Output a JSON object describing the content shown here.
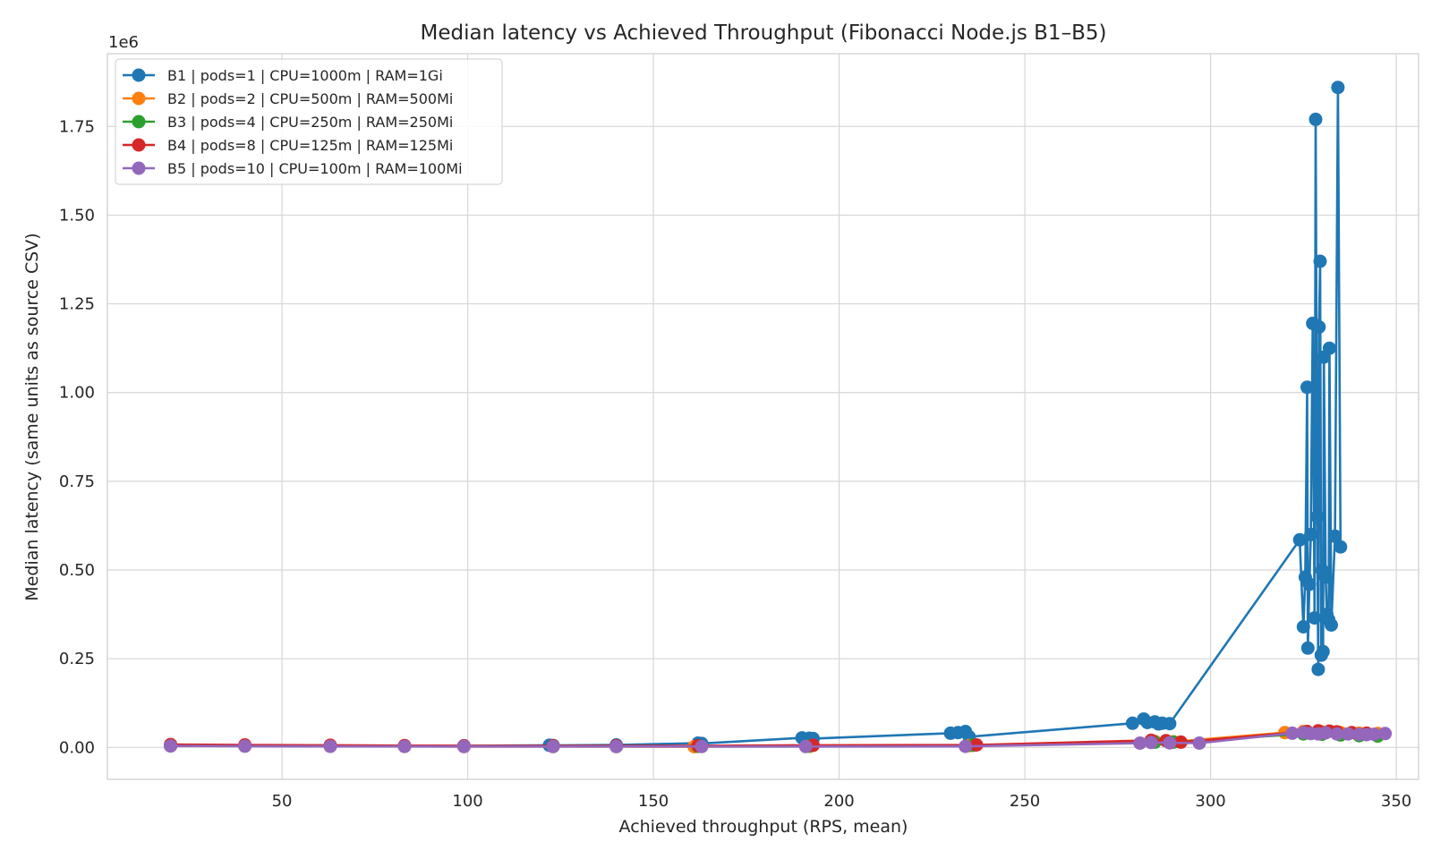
{
  "chart_data": {
    "type": "line",
    "title": "Median latency vs Achieved Throughput (Fibonacci Node.js B1–B5)",
    "xlabel": "Achieved throughput (RPS, mean)",
    "ylabel": "Median latency (same units as source CSV)",
    "y_offset_label": "1e6",
    "xlim": [
      3,
      356
    ],
    "ylim": [
      -90000,
      1955000
    ],
    "x_ticks": [
      {
        "value": 50,
        "label": "50"
      },
      {
        "value": 100,
        "label": "100"
      },
      {
        "value": 150,
        "label": "150"
      },
      {
        "value": 200,
        "label": "200"
      },
      {
        "value": 250,
        "label": "250"
      },
      {
        "value": 300,
        "label": "300"
      },
      {
        "value": 350,
        "label": "350"
      }
    ],
    "y_ticks": [
      {
        "value": 0,
        "label": "0.00"
      },
      {
        "value": 250000,
        "label": "0.25"
      },
      {
        "value": 500000,
        "label": "0.50"
      },
      {
        "value": 750000,
        "label": "0.75"
      },
      {
        "value": 1000000,
        "label": "1.00"
      },
      {
        "value": 1250000,
        "label": "1.25"
      },
      {
        "value": 1500000,
        "label": "1.50"
      },
      {
        "value": 1750000,
        "label": "1.75"
      }
    ],
    "grid": true,
    "legend_position": "top-left",
    "series": [
      {
        "name": "B1 | pods=1 | CPU=1000m | RAM=1Gi",
        "color": "#1f77b4",
        "points": [
          [
            20,
            4500
          ],
          [
            40,
            4500
          ],
          [
            63,
            4500
          ],
          [
            83,
            4500
          ],
          [
            99,
            4500
          ],
          [
            122,
            6000
          ],
          [
            123,
            5500
          ],
          [
            140,
            7000
          ],
          [
            162,
            12000
          ],
          [
            163,
            11000
          ],
          [
            190,
            27000
          ],
          [
            192,
            26000
          ],
          [
            193,
            25000
          ],
          [
            230,
            40000
          ],
          [
            232,
            42000
          ],
          [
            234,
            45000
          ],
          [
            235,
            30000
          ],
          [
            279,
            68000
          ],
          [
            282,
            80000
          ],
          [
            283,
            70000
          ],
          [
            285,
            72000
          ],
          [
            286,
            66000
          ],
          [
            287,
            68000
          ],
          [
            289,
            67000
          ],
          [
            324,
            585000
          ],
          [
            325,
            340000
          ],
          [
            325.5,
            480000
          ],
          [
            326,
            1015000
          ],
          [
            326.2,
            280000
          ],
          [
            326.6,
            460000
          ],
          [
            327,
            600000
          ],
          [
            327.5,
            1195000
          ],
          [
            328,
            365000
          ],
          [
            328.3,
            1770000
          ],
          [
            328.7,
            650000
          ],
          [
            329,
            220000
          ],
          [
            329.2,
            1185000
          ],
          [
            329.5,
            1370000
          ],
          [
            329.8,
            260000
          ],
          [
            330,
            500000
          ],
          [
            330.3,
            270000
          ],
          [
            330.5,
            1100000
          ],
          [
            331,
            480000
          ],
          [
            331.3,
            375000
          ],
          [
            331.8,
            360000
          ],
          [
            332,
            1125000
          ],
          [
            332.5,
            345000
          ],
          [
            333.5,
            595000
          ],
          [
            334.3,
            1860000
          ],
          [
            335,
            565000
          ]
        ]
      },
      {
        "name": "B2 | pods=2 | CPU=500m | RAM=500Mi",
        "color": "#ff7f0e",
        "points": [
          [
            20,
            4500
          ],
          [
            40,
            4000
          ],
          [
            63,
            3500
          ],
          [
            83,
            3000
          ],
          [
            99,
            2500
          ],
          [
            123,
            2500
          ],
          [
            140,
            2500
          ],
          [
            161,
            2000
          ],
          [
            192,
            3000
          ],
          [
            235,
            5000
          ],
          [
            285,
            17000
          ],
          [
            290,
            16000
          ],
          [
            320,
            42000
          ],
          [
            325,
            45000
          ],
          [
            330,
            44000
          ],
          [
            335,
            42000
          ],
          [
            340,
            40000
          ],
          [
            345,
            39000
          ]
        ]
      },
      {
        "name": "B3 | pods=4 | CPU=250m | RAM=250Mi",
        "color": "#2ca02c",
        "points": [
          [
            20,
            5000
          ],
          [
            40,
            4500
          ],
          [
            63,
            4000
          ],
          [
            83,
            3500
          ],
          [
            99,
            3000
          ],
          [
            123,
            3000
          ],
          [
            140,
            3000
          ],
          [
            162,
            3000
          ],
          [
            192,
            4000
          ],
          [
            236,
            6000
          ],
          [
            285,
            15000
          ],
          [
            290,
            15000
          ],
          [
            325,
            38000
          ],
          [
            330,
            37000
          ],
          [
            335,
            35000
          ],
          [
            340,
            33000
          ],
          [
            345,
            32000
          ]
        ]
      },
      {
        "name": "B4 | pods=8 | CPU=125m | RAM=125Mi",
        "color": "#d62728",
        "points": [
          [
            20,
            8000
          ],
          [
            40,
            7000
          ],
          [
            63,
            6000
          ],
          [
            83,
            5000
          ],
          [
            99,
            4500
          ],
          [
            123,
            4500
          ],
          [
            140,
            4500
          ],
          [
            162,
            4500
          ],
          [
            193,
            6000
          ],
          [
            237,
            7000
          ],
          [
            284,
            20000
          ],
          [
            288,
            19000
          ],
          [
            292,
            15000
          ],
          [
            326,
            45000
          ],
          [
            329,
            47000
          ],
          [
            332,
            46000
          ],
          [
            334,
            44000
          ],
          [
            338,
            42000
          ],
          [
            342,
            40000
          ]
        ]
      },
      {
        "name": "B5 | pods=10 | CPU=100m | RAM=100Mi",
        "color": "#9467bd",
        "points": [
          [
            20,
            4000
          ],
          [
            40,
            3500
          ],
          [
            63,
            3000
          ],
          [
            83,
            2800
          ],
          [
            99,
            2500
          ],
          [
            123,
            2500
          ],
          [
            140,
            2500
          ],
          [
            163,
            2500
          ],
          [
            191,
            2500
          ],
          [
            234,
            3000
          ],
          [
            281,
            12000
          ],
          [
            284,
            14000
          ],
          [
            289,
            13000
          ],
          [
            297,
            12000
          ],
          [
            322,
            40000
          ],
          [
            325,
            42000
          ],
          [
            327,
            39000
          ],
          [
            329,
            38000
          ],
          [
            331,
            41000
          ],
          [
            334,
            38000
          ],
          [
            337,
            38000
          ],
          [
            340,
            37000
          ],
          [
            342,
            36000
          ],
          [
            344,
            37000
          ],
          [
            347,
            39000
          ]
        ]
      }
    ]
  }
}
